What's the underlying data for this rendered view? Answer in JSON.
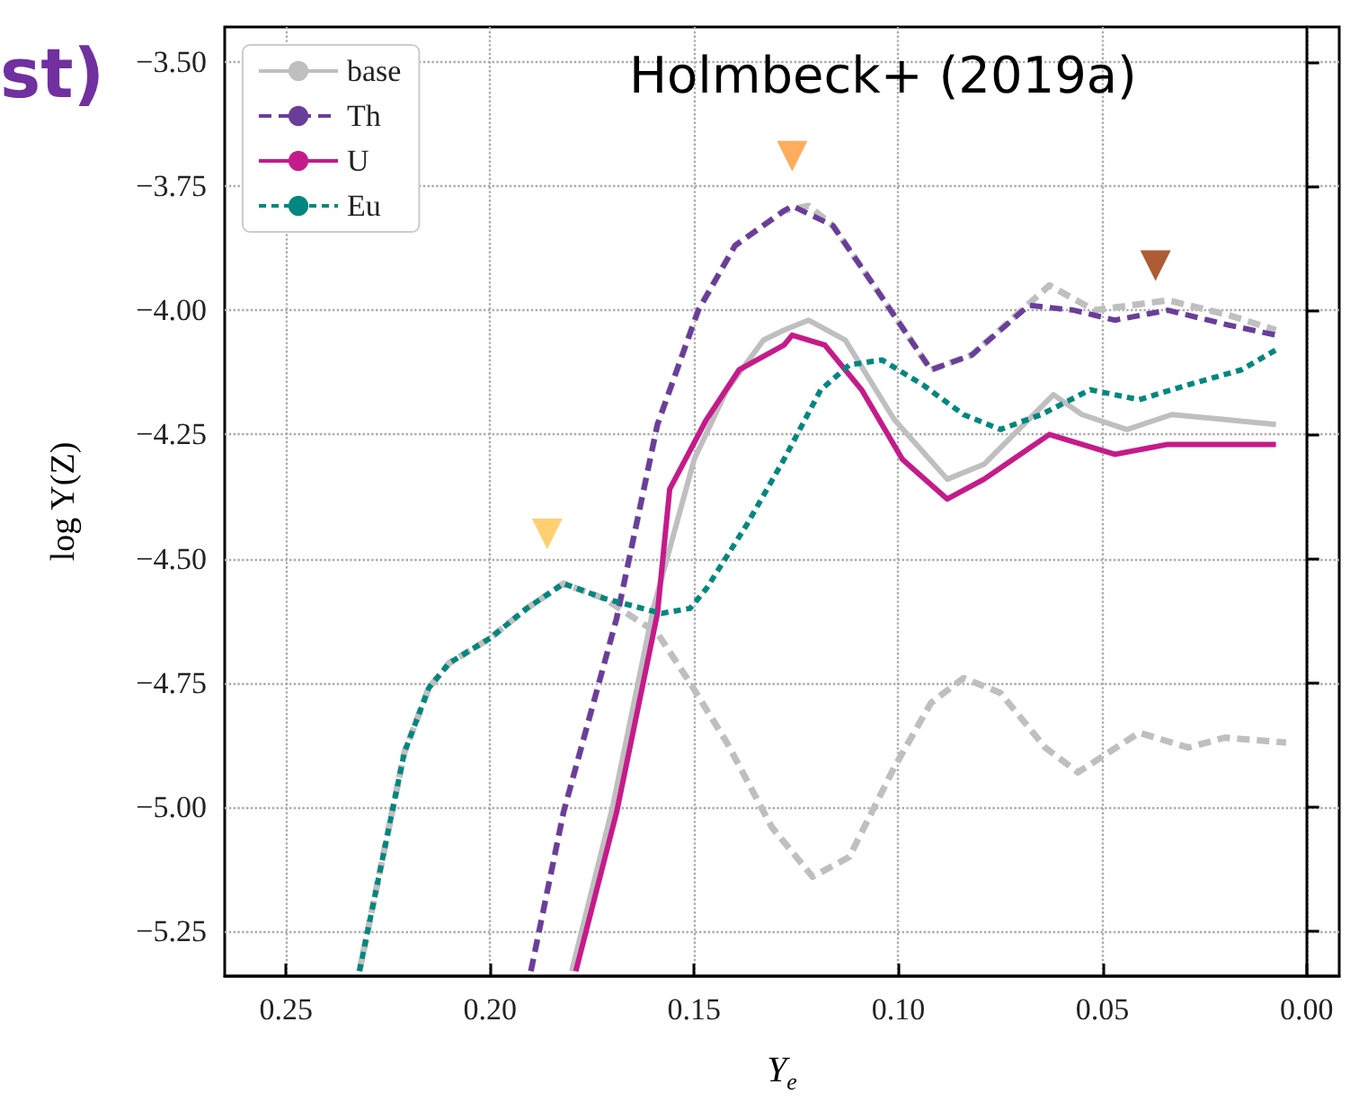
{
  "chart_data": {
    "type": "line",
    "xlabel": "Y$_{e}$",
    "ylabel": "log Y(Z)",
    "annotations": [
      "st)",
      "Holmbeck+ (2019a)"
    ],
    "xlim": [
      0.265,
      -0.008
    ],
    "ylim": [
      -5.34,
      -3.43
    ],
    "xticks": [
      {
        "value": 0.25,
        "label": "0.25"
      },
      {
        "value": 0.2,
        "label": "0.20"
      },
      {
        "value": 0.15,
        "label": "0.15"
      },
      {
        "value": 0.1,
        "label": "0.10"
      },
      {
        "value": 0.05,
        "label": "0.05"
      },
      {
        "value": 0,
        "label": "0.00"
      }
    ],
    "yticks": [
      {
        "value": -3.5,
        "label": "−3.50"
      },
      {
        "value": -3.75,
        "label": "−3.75"
      },
      {
        "value": -4,
        "label": "−4.00"
      },
      {
        "value": -4.25,
        "label": "−4.25"
      },
      {
        "value": -4.5,
        "label": "−4.50"
      },
      {
        "value": -4.75,
        "label": "−4.75"
      },
      {
        "value": -5,
        "label": "−5.00"
      },
      {
        "value": -5.25,
        "label": "−5.25"
      }
    ],
    "grid": true,
    "legend": "top left",
    "series": [
      {
        "name": "base",
        "color": "#bfbfbf",
        "line_style": "solid",
        "x": [
          0.18,
          0.17,
          0.16,
          0.15,
          0.142,
          0.133,
          0.128,
          0.122,
          0.113,
          0.101,
          0.088,
          0.079,
          0.062,
          0.055,
          0.044,
          0.033,
          0.02,
          0.0075
        ],
        "values": [
          -5.33,
          -5.0,
          -4.6,
          -4.3,
          -4.16,
          -4.06,
          -4.04,
          -4.02,
          -4.06,
          -4.22,
          -4.34,
          -4.31,
          -4.17,
          -4.21,
          -4.24,
          -4.21,
          -4.22,
          -4.23
        ]
      },
      {
        "color": "#bfbfbf",
        "line_style": "dashed",
        "x": [
          0.19,
          0.182,
          0.169,
          0.159,
          0.149,
          0.14,
          0.128,
          0.122,
          0.116,
          0.106,
          0.092,
          0.082,
          0.063,
          0.052,
          0.034,
          0.019,
          0.0075
        ],
        "values": [
          -5.33,
          -5.01,
          -4.62,
          -4.23,
          -4.0,
          -3.87,
          -3.8,
          -3.79,
          -3.83,
          -3.95,
          -4.12,
          -4.09,
          -3.95,
          -4.0,
          -3.98,
          -4.01,
          -4.04
        ]
      },
      {
        "color": "#bfbfbf",
        "line_style": "dashed",
        "x": [
          0.232,
          0.224,
          0.221,
          0.215,
          0.21,
          0.2,
          0.191,
          0.182,
          0.172,
          0.159,
          0.151,
          0.142,
          0.131,
          0.121,
          0.112,
          0.101,
          0.092,
          0.084,
          0.075,
          0.064,
          0.056,
          0.041,
          0.029,
          0.02,
          0.005
        ],
        "values": [
          -5.33,
          -5.01,
          -4.89,
          -4.76,
          -4.71,
          -4.66,
          -4.6,
          -4.55,
          -4.58,
          -4.65,
          -4.75,
          -4.87,
          -5.04,
          -5.14,
          -5.1,
          -4.92,
          -4.79,
          -4.74,
          -4.77,
          -4.88,
          -4.93,
          -4.85,
          -4.88,
          -4.86,
          -4.87
        ]
      },
      {
        "name": "Th",
        "color": "#6a3d9a",
        "line_style": "dashed",
        "x": [
          0.19,
          0.182,
          0.169,
          0.159,
          0.149,
          0.14,
          0.128,
          0.126,
          0.116,
          0.106,
          0.092,
          0.082,
          0.068,
          0.057,
          0.047,
          0.034,
          0.019,
          0.0075
        ],
        "values": [
          -5.33,
          -5.01,
          -4.62,
          -4.23,
          -4.0,
          -3.87,
          -3.8,
          -3.79,
          -3.83,
          -3.95,
          -4.12,
          -4.09,
          -3.99,
          -4.0,
          -4.02,
          -4.0,
          -4.03,
          -4.05
        ]
      },
      {
        "name": "U",
        "color": "#c51b8a",
        "line_style": "solid",
        "x": [
          0.179,
          0.169,
          0.159,
          0.156,
          0.147,
          0.139,
          0.128,
          0.126,
          0.118,
          0.109,
          0.099,
          0.088,
          0.079,
          0.063,
          0.047,
          0.034,
          0.0075
        ],
        "values": [
          -5.33,
          -5.01,
          -4.61,
          -4.36,
          -4.22,
          -4.12,
          -4.07,
          -4.05,
          -4.07,
          -4.16,
          -4.3,
          -4.38,
          -4.34,
          -4.25,
          -4.29,
          -4.27,
          -4.27
        ]
      },
      {
        "name": "Eu",
        "color": "#00877f",
        "line_style": "dotted",
        "x": [
          0.232,
          0.224,
          0.221,
          0.215,
          0.21,
          0.2,
          0.191,
          0.182,
          0.172,
          0.158,
          0.151,
          0.147,
          0.137,
          0.128,
          0.119,
          0.112,
          0.104,
          0.094,
          0.084,
          0.075,
          0.065,
          0.053,
          0.041,
          0.029,
          0.016,
          0.0075
        ],
        "values": [
          -5.33,
          -5.01,
          -4.89,
          -4.76,
          -4.71,
          -4.66,
          -4.6,
          -4.55,
          -4.58,
          -4.61,
          -4.6,
          -4.56,
          -4.43,
          -4.3,
          -4.16,
          -4.11,
          -4.1,
          -4.15,
          -4.21,
          -4.24,
          -4.21,
          -4.16,
          -4.18,
          -4.15,
          -4.12,
          -4.08
        ]
      },
      {
        "type": "scatter",
        "marker": "triangle",
        "color": "#ffc44d",
        "x": [
          0.186
        ],
        "values": [
          -4.45
        ]
      },
      {
        "type": "scatter",
        "marker": "triangle",
        "color": "#ff9933",
        "x": [
          0.126
        ],
        "values": [
          -3.69
        ]
      },
      {
        "type": "scatter",
        "marker": "triangle",
        "color": "#993300",
        "x": [
          0.037
        ],
        "values": [
          -3.91
        ]
      }
    ]
  }
}
